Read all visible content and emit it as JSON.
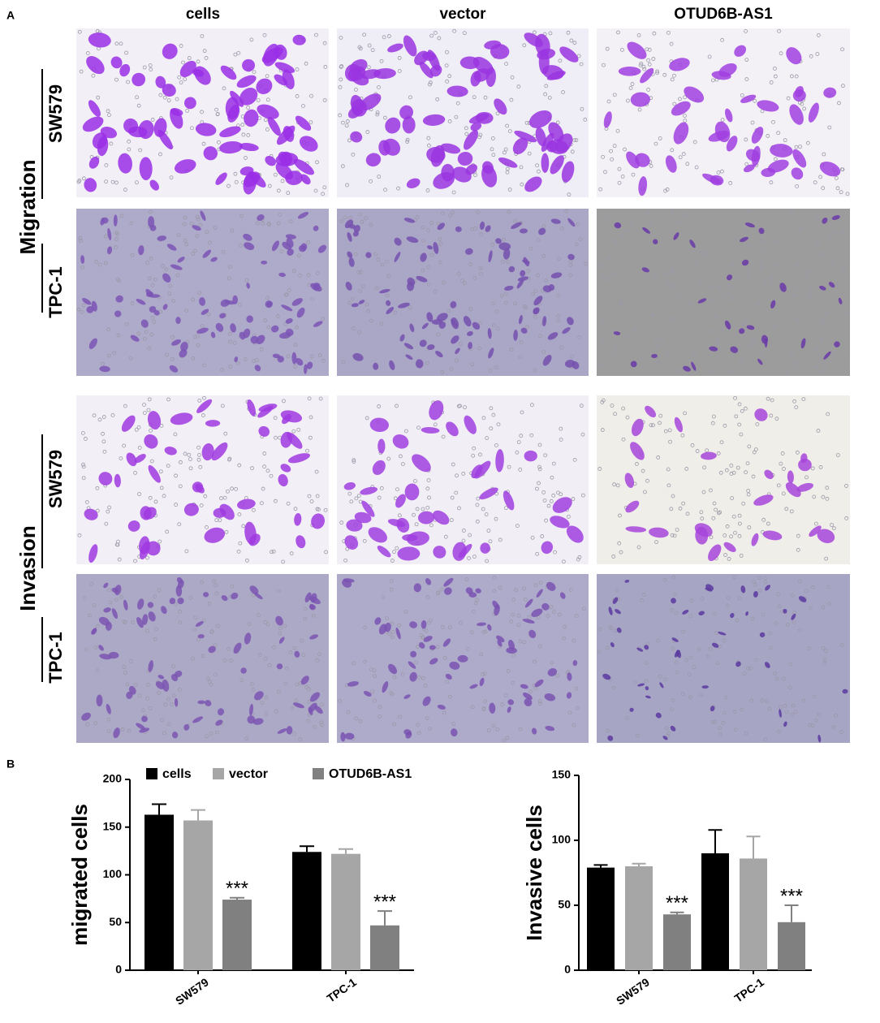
{
  "panel_a": {
    "label": "A",
    "columns": [
      "cells",
      "vector",
      "OTUD6B-AS1"
    ],
    "groups": [
      {
        "name": "Migration",
        "rows": [
          "SW579",
          "TPC-1"
        ]
      },
      {
        "name": "Invasion",
        "rows": [
          "SW579",
          "TPC-1"
        ]
      }
    ]
  },
  "panel_b": {
    "label": "B"
  },
  "chart_data": [
    {
      "type": "bar",
      "y_label": "migrated cells",
      "categories": [
        "SW579",
        "TPC-1"
      ],
      "ylim": [
        0,
        200
      ],
      "yticks": [
        0,
        50,
        100,
        150,
        200
      ],
      "legend": "top",
      "series": [
        {
          "name": "cells",
          "color": "#000000",
          "values": [
            163,
            124
          ],
          "errors": [
            11,
            6
          ]
        },
        {
          "name": "vector",
          "color": "#a6a6a6",
          "values": [
            157,
            122
          ],
          "errors": [
            11,
            5
          ]
        },
        {
          "name": "OTUD6B-AS1",
          "color": "#808080",
          "values": [
            74,
            47
          ],
          "errors": [
            2,
            15
          ],
          "significance": [
            "***",
            "***"
          ]
        }
      ]
    },
    {
      "type": "bar",
      "y_label": "Invasive cells",
      "categories": [
        "SW579",
        "TPC-1"
      ],
      "ylim": [
        0,
        150
      ],
      "yticks": [
        0,
        50,
        100,
        150
      ],
      "series": [
        {
          "name": "cells",
          "color": "#000000",
          "values": [
            79,
            90
          ],
          "errors": [
            2,
            18
          ]
        },
        {
          "name": "vector",
          "color": "#a6a6a6",
          "values": [
            80,
            86
          ],
          "errors": [
            2,
            17
          ]
        },
        {
          "name": "OTUD6B-AS1",
          "color": "#808080",
          "values": [
            43,
            37
          ],
          "errors": [
            1.5,
            13
          ],
          "significance": [
            "***",
            "***"
          ]
        }
      ]
    }
  ]
}
